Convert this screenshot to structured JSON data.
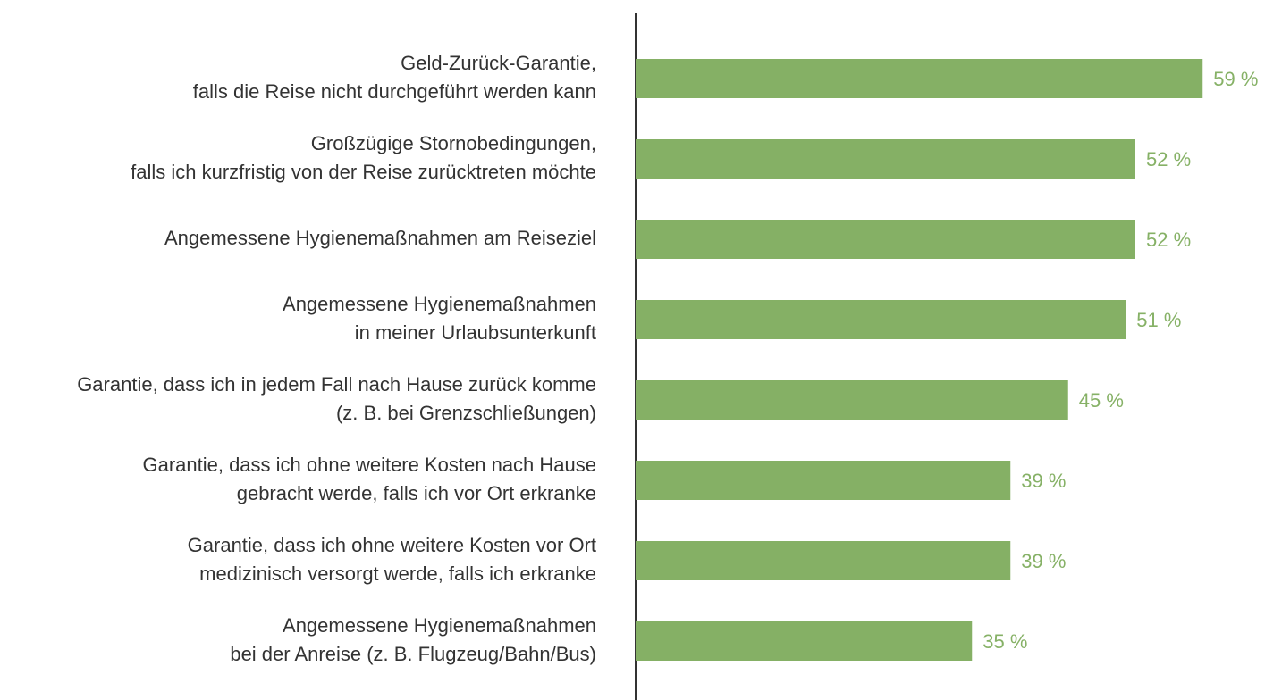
{
  "chart_data": {
    "type": "barh",
    "categories": [
      [
        "Geld-Zurück-Garantie,",
        "falls die Reise nicht durchgeführt werden kann"
      ],
      [
        "Großzügige Stornobedingungen,",
        "falls ich kurzfristig von der Reise zurücktreten möchte"
      ],
      [
        "Angemessene Hygienemaßnahmen am Reiseziel"
      ],
      [
        "Angemessene Hygienemaßnahmen",
        "in meiner Urlaubsunterkunft"
      ],
      [
        "Garantie, dass ich in jedem Fall nach Hause zurück komme",
        "(z. B. bei Grenzschließungen)"
      ],
      [
        "Garantie, dass ich ohne weitere Kosten nach Hause",
        "gebracht werde, falls ich vor Ort erkranke"
      ],
      [
        "Garantie, dass ich ohne weitere Kosten vor Ort",
        "medizinisch versorgt werde, falls ich erkranke"
      ],
      [
        "Angemessene  Hygienemaßnahmen",
        "bei der Anreise (z. B. Flugzeug/Bahn/Bus)"
      ]
    ],
    "values": [
      59,
      52,
      52,
      51,
      45,
      39,
      39,
      35
    ],
    "value_labels": [
      "59 %",
      "52 %",
      "52 %",
      "51 %",
      "45 %",
      "39 %",
      "39 %",
      "35 %"
    ],
    "color": "#85b065",
    "xlim": [
      0,
      60
    ]
  }
}
